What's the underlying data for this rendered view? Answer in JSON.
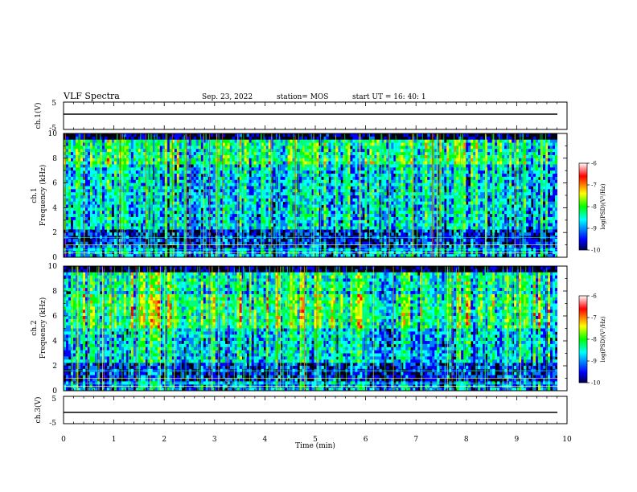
{
  "header": {
    "title": "VLF Spectra",
    "date": "Sep. 23, 2022",
    "station": "station= MOS",
    "start": "start  UT =   16: 40: 1"
  },
  "chart_data": [
    {
      "type": "line",
      "name": "ch1-waveform",
      "ylabel": "ch.1(V)",
      "ylim": [
        -5,
        5
      ],
      "y_ticks": [
        "5",
        "-5"
      ],
      "x": [
        0,
        10
      ],
      "values": [
        0,
        0
      ]
    },
    {
      "type": "heatmap",
      "name": "ch1-spectrogram",
      "ylabel_top": "ch.1",
      "ylabel": "Frequency (kHz)",
      "ylim": [
        0,
        10
      ],
      "y_ticks": [
        "0",
        "2",
        "4",
        "6",
        "8",
        "10"
      ],
      "xlim": [
        0,
        10
      ],
      "colorbar": {
        "label": "log(PSD)(V²/Hz)",
        "range": [
          -10,
          -6
        ],
        "ticks": [
          "-6",
          "-7",
          "-8",
          "-9",
          "-10"
        ],
        "colors": [
          "#00004a",
          "#0000ff",
          "#00ffff",
          "#00ff00",
          "#ffff00",
          "#ff0000",
          "#ffffff"
        ]
      }
    },
    {
      "type": "heatmap",
      "name": "ch2-spectrogram",
      "ylabel_top": "ch.2",
      "ylabel": "Frequency (kHz)",
      "ylim": [
        0,
        10
      ],
      "y_ticks": [
        "0",
        "2",
        "4",
        "6",
        "8",
        "10"
      ],
      "xlim": [
        0,
        10
      ],
      "colorbar": {
        "label": "log(PSD)(V²/Hz)",
        "range": [
          -10,
          -6
        ],
        "ticks": [
          "-6",
          "-7",
          "-8",
          "-9",
          "-10"
        ],
        "colors": [
          "#00004a",
          "#0000ff",
          "#00ffff",
          "#00ff00",
          "#ffff00",
          "#ff0000",
          "#ffffff"
        ]
      }
    },
    {
      "type": "line",
      "name": "ch3-waveform",
      "ylabel": "ch.3(V)",
      "ylim": [
        -5,
        5
      ],
      "y_ticks": [
        "5",
        "-5"
      ],
      "x": [
        0,
        10
      ],
      "values": [
        0,
        0
      ]
    }
  ],
  "x_axis": {
    "label": "Time (min)",
    "ticks": [
      "0",
      "1",
      "2",
      "3",
      "4",
      "5",
      "6",
      "7",
      "8",
      "9",
      "10"
    ],
    "range": [
      0,
      10
    ]
  }
}
